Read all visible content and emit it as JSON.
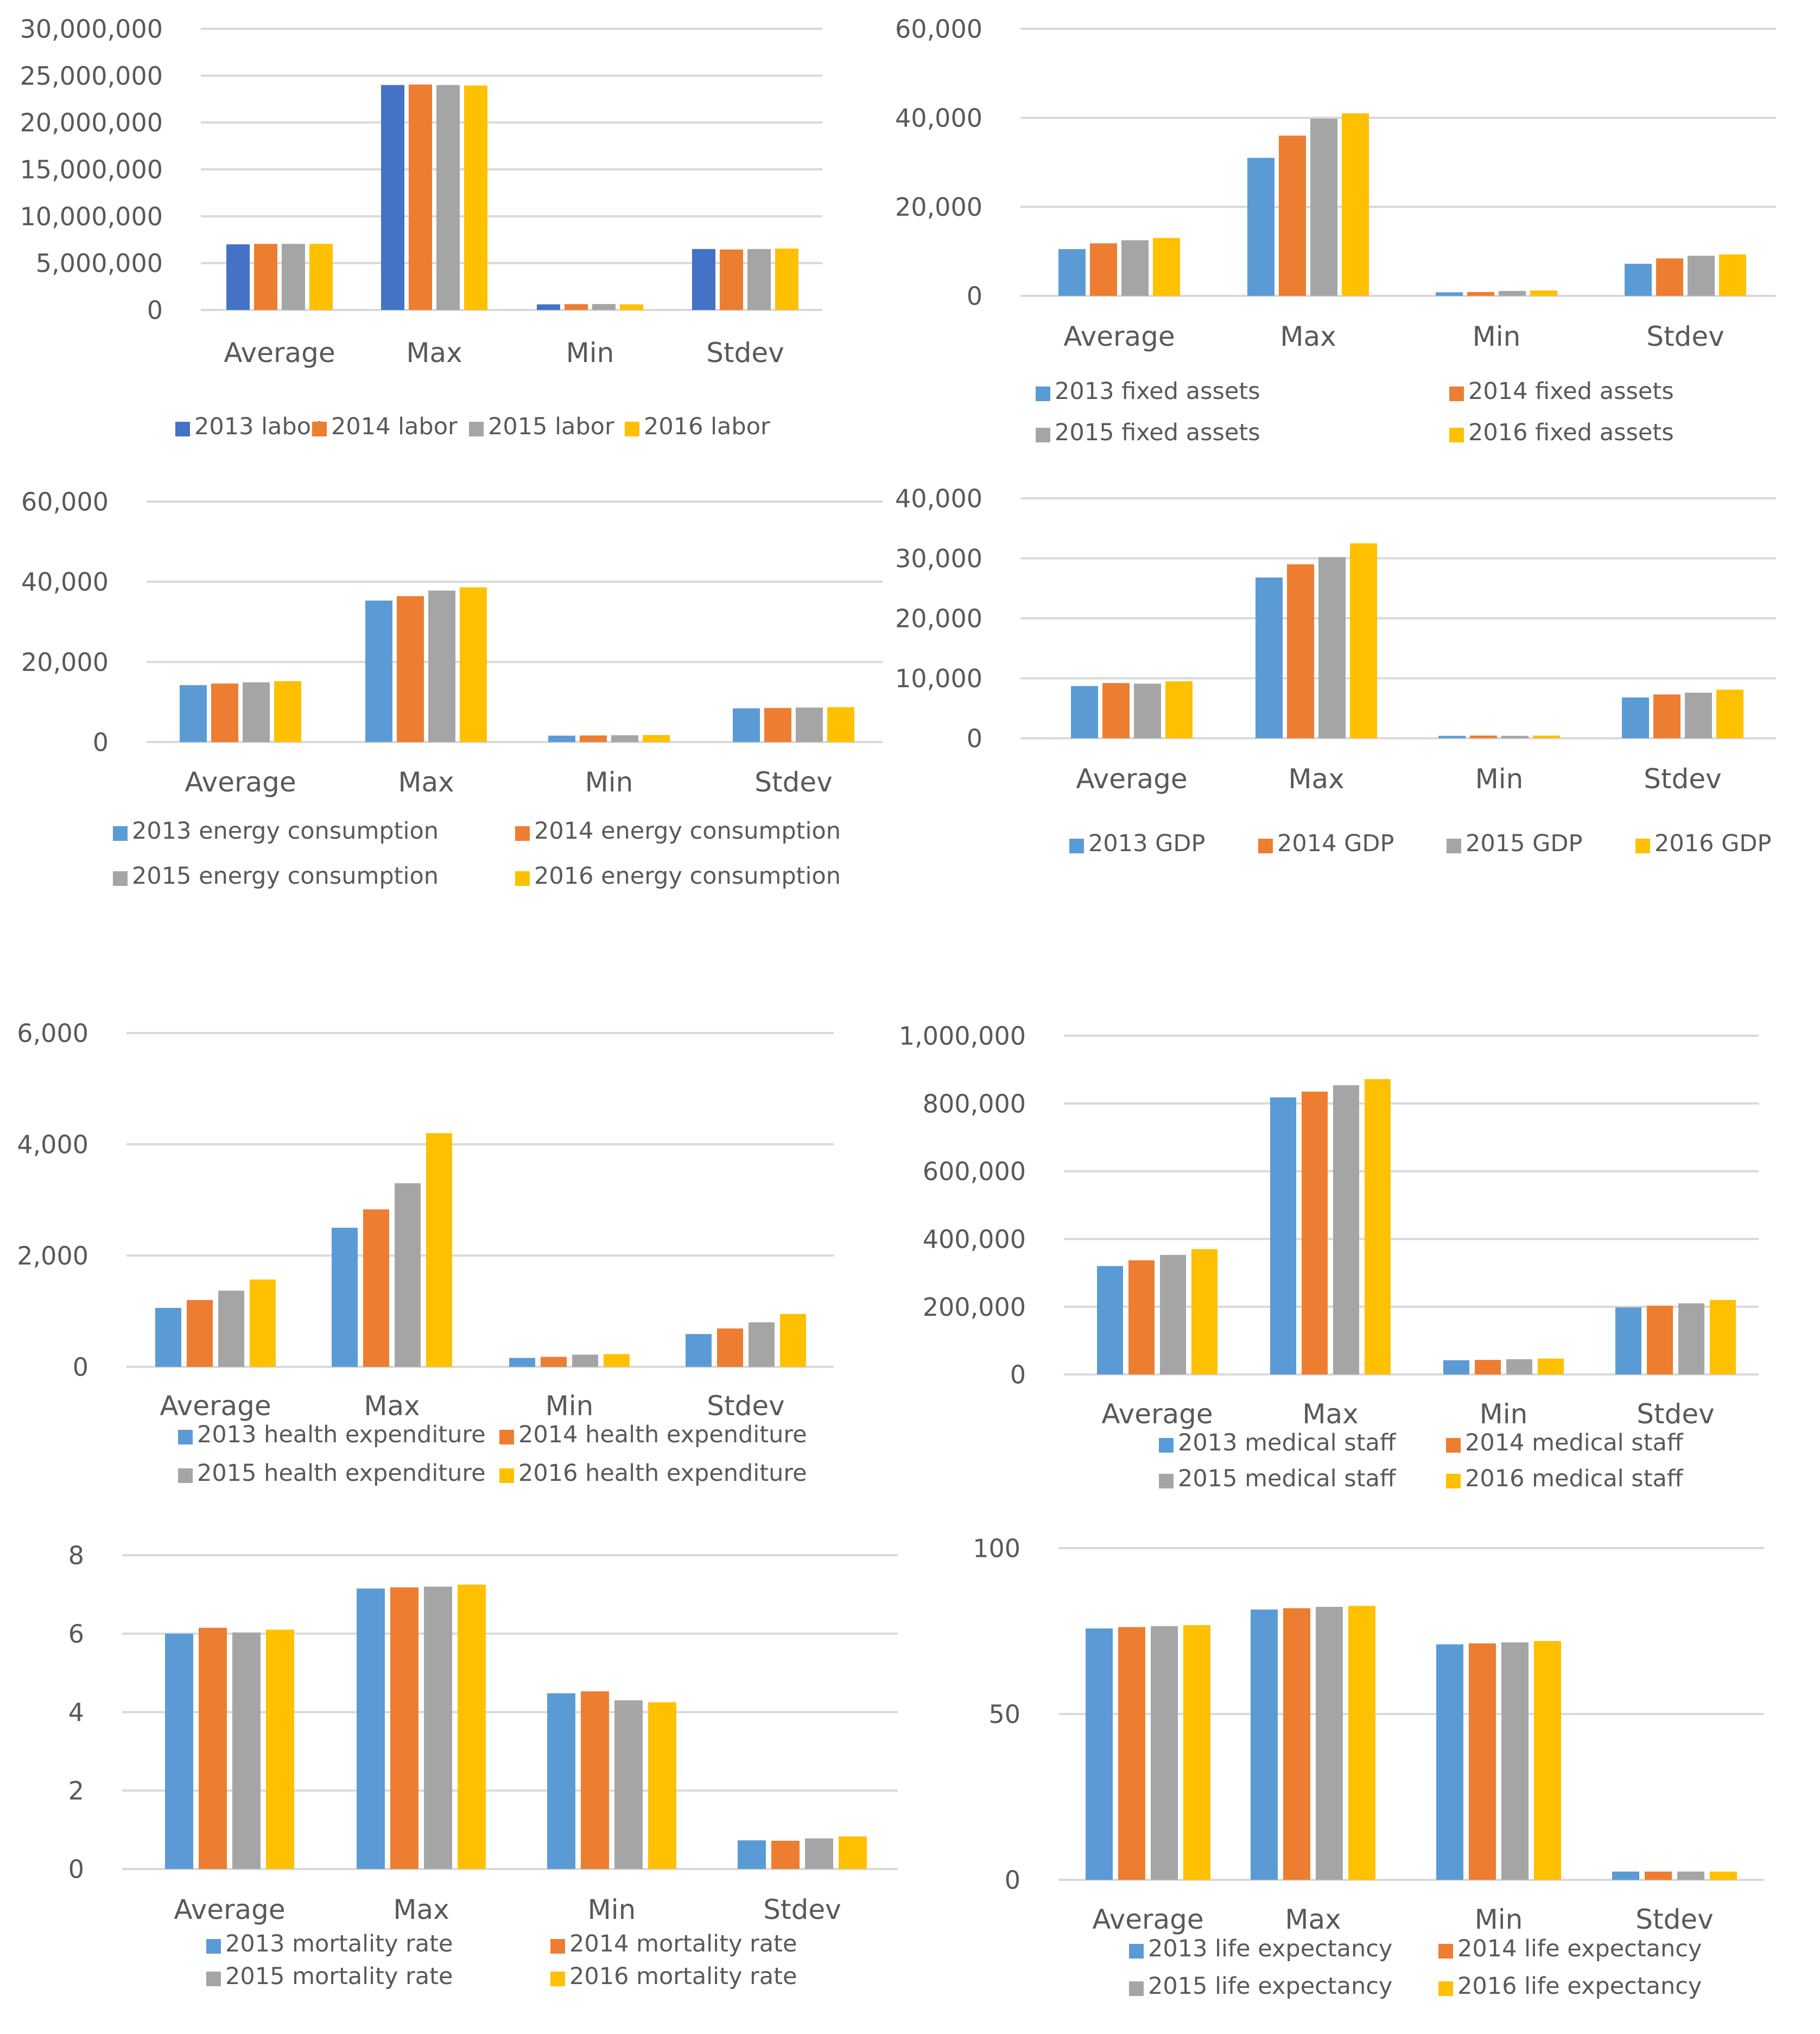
{
  "categories": [
    "Average",
    "Max",
    "Min",
    "Stdev"
  ],
  "colors": {
    "s2013": "#5b9bd5",
    "s2013_dark": "#4472c4",
    "s2014": "#ed7d31",
    "s2015": "#a5a5a5",
    "s2016": "#ffc000",
    "grid": "#d9d9d9",
    "text": "#595959"
  },
  "chart_data": [
    {
      "id": "labor",
      "type": "bar",
      "title": "",
      "xlabel": "",
      "ylabel": "",
      "ylim": [
        0,
        30000000
      ],
      "yticks": [
        "0",
        "5,000,000",
        "10,000,000",
        "15,000,000",
        "20,000,000",
        "25,000,000",
        "30,000,000"
      ],
      "legend_position": "bottom",
      "series": [
        {
          "name": "2013 labor",
          "values": [
            7000000,
            24000000,
            600000,
            6500000
          ]
        },
        {
          "name": "2014 labor",
          "values": [
            7050000,
            24050000,
            620000,
            6450000
          ]
        },
        {
          "name": "2015 labor",
          "values": [
            7050000,
            24000000,
            630000,
            6500000
          ]
        },
        {
          "name": "2016 labor",
          "values": [
            7050000,
            23950000,
            600000,
            6550000
          ]
        }
      ]
    },
    {
      "id": "fixed-assets",
      "type": "bar",
      "title": "",
      "xlabel": "",
      "ylabel": "",
      "ylim": [
        0,
        60000
      ],
      "yticks": [
        "0",
        "20,000",
        "40,000",
        "60,000"
      ],
      "legend_position": "bottom",
      "series": [
        {
          "name": "2013 fixed assets",
          "values": [
            10500,
            31000,
            800,
            7200
          ]
        },
        {
          "name": "2014 fixed assets",
          "values": [
            11800,
            36000,
            850,
            8400
          ]
        },
        {
          "name": "2015 fixed assets",
          "values": [
            12500,
            39800,
            1100,
            9000
          ]
        },
        {
          "name": "2016 fixed assets",
          "values": [
            13000,
            41000,
            1200,
            9300
          ]
        }
      ]
    },
    {
      "id": "energy",
      "type": "bar",
      "title": "",
      "xlabel": "",
      "ylabel": "",
      "ylim": [
        0,
        60000
      ],
      "yticks": [
        "0",
        "20,000",
        "40,000",
        "60,000"
      ],
      "legend_position": "bottom",
      "series": [
        {
          "name": "2013 energy consumption",
          "values": [
            14200,
            35300,
            1600,
            8400
          ]
        },
        {
          "name": "2014 energy consumption",
          "values": [
            14600,
            36400,
            1650,
            8500
          ]
        },
        {
          "name": "2015 energy consumption",
          "values": [
            14900,
            37800,
            1700,
            8600
          ]
        },
        {
          "name": "2016 energy consumption",
          "values": [
            15200,
            38600,
            1750,
            8700
          ]
        }
      ]
    },
    {
      "id": "gdp",
      "type": "bar",
      "title": "",
      "xlabel": "",
      "ylabel": "",
      "ylim": [
        0,
        40000
      ],
      "yticks": [
        "0",
        "10,000",
        "20,000",
        "30,000",
        "40,000"
      ],
      "legend_position": "bottom",
      "series": [
        {
          "name": "2013 GDP",
          "values": [
            8700,
            26800,
            400,
            6800
          ]
        },
        {
          "name": "2014 GDP",
          "values": [
            9200,
            29000,
            450,
            7300
          ]
        },
        {
          "name": "2015 GDP",
          "values": [
            9100,
            30200,
            400,
            7600
          ]
        },
        {
          "name": "2016 GDP",
          "values": [
            9500,
            32500,
            450,
            8100
          ]
        }
      ]
    },
    {
      "id": "health-expenditure",
      "type": "bar",
      "title": "",
      "xlabel": "",
      "ylabel": "",
      "ylim": [
        0,
        6000
      ],
      "yticks": [
        "0",
        "2,000",
        "4,000",
        "6,000"
      ],
      "legend_position": "bottom",
      "series": [
        {
          "name": "2013 health expenditure",
          "values": [
            1060,
            2500,
            160,
            590
          ]
        },
        {
          "name": "2014 health expenditure",
          "values": [
            1200,
            2830,
            180,
            690
          ]
        },
        {
          "name": "2015 health expenditure",
          "values": [
            1370,
            3300,
            220,
            800
          ]
        },
        {
          "name": "2016 health expenditure",
          "values": [
            1570,
            4200,
            230,
            950
          ]
        }
      ]
    },
    {
      "id": "medical-staff",
      "type": "bar",
      "title": "",
      "xlabel": "",
      "ylabel": "",
      "ylim": [
        0,
        1000000
      ],
      "yticks": [
        "0",
        "200,000",
        "400,000",
        "600,000",
        "800,000",
        "1,000,000"
      ],
      "legend_position": "bottom",
      "series": [
        {
          "name": "2013 medical staff",
          "values": [
            320000,
            818000,
            42000,
            198000
          ]
        },
        {
          "name": "2014 medical staff",
          "values": [
            337000,
            835000,
            43000,
            203000
          ]
        },
        {
          "name": "2015 medical staff",
          "values": [
            353000,
            854000,
            45000,
            210000
          ]
        },
        {
          "name": "2016 medical staff",
          "values": [
            370000,
            872000,
            47000,
            220000
          ]
        }
      ]
    },
    {
      "id": "mortality-rate",
      "type": "bar",
      "title": "",
      "xlabel": "",
      "ylabel": "",
      "ylim": [
        0,
        8
      ],
      "yticks": [
        "0",
        "2",
        "4",
        "6",
        "8"
      ],
      "legend_position": "bottom",
      "series": [
        {
          "name": "2013 mortality rate",
          "values": [
            6.0,
            7.15,
            4.48,
            0.73
          ]
        },
        {
          "name": "2014 mortality rate",
          "values": [
            6.15,
            7.18,
            4.53,
            0.72
          ]
        },
        {
          "name": "2015 mortality rate",
          "values": [
            6.03,
            7.2,
            4.3,
            0.78
          ]
        },
        {
          "name": "2016 mortality rate",
          "values": [
            6.1,
            7.25,
            4.25,
            0.83
          ]
        }
      ]
    },
    {
      "id": "life-expectancy",
      "type": "bar",
      "title": "",
      "xlabel": "",
      "ylabel": "",
      "ylim": [
        0,
        100
      ],
      "yticks": [
        "0",
        "50",
        "100"
      ],
      "legend_position": "bottom",
      "series": [
        {
          "name": "2013 life expectancy",
          "values": [
            75.8,
            81.5,
            71.0,
            2.5
          ]
        },
        {
          "name": "2014 life expectancy",
          "values": [
            76.2,
            81.9,
            71.3,
            2.5
          ]
        },
        {
          "name": "2015 life expectancy",
          "values": [
            76.5,
            82.3,
            71.6,
            2.5
          ]
        },
        {
          "name": "2016 life expectancy",
          "values": [
            76.8,
            82.6,
            72.0,
            2.5
          ]
        }
      ]
    }
  ]
}
